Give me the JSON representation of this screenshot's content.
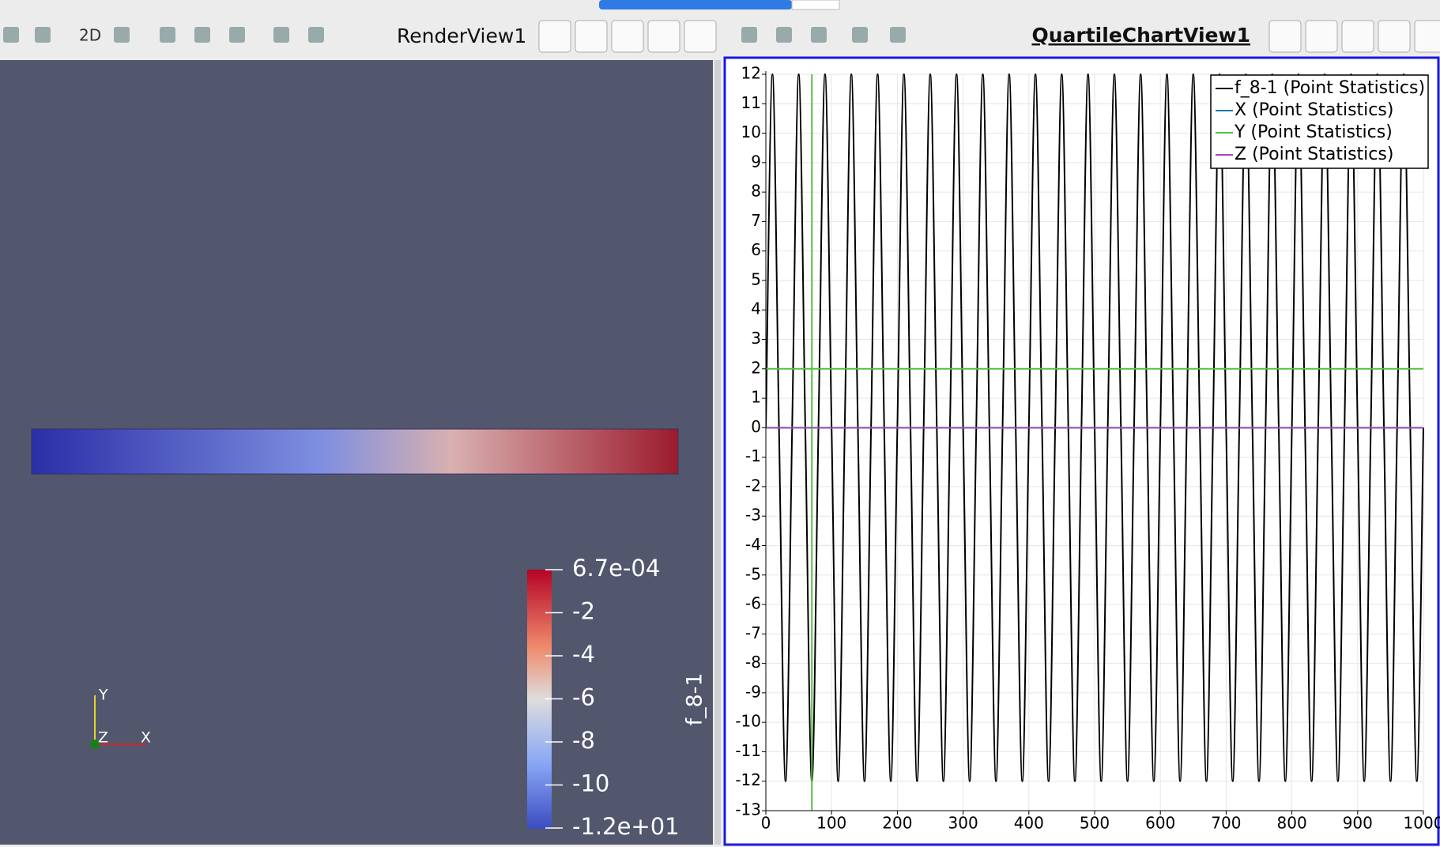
{
  "toolbar": {
    "button_2d": "2D",
    "render_view": "RenderView1",
    "chart_view": "QuartileChartView1"
  },
  "render_view": {
    "colorbar": {
      "title": "f_8-1",
      "labels": [
        "6.7e-04",
        "-2",
        "-4",
        "-6",
        "-8",
        "-10",
        "-1.2e+01"
      ]
    },
    "axes": {
      "y": "Y",
      "z": "Z",
      "x": "X"
    }
  },
  "chart_data": {
    "type": "line",
    "xlim": [
      0,
      1000
    ],
    "ylim": [
      -13,
      12
    ],
    "xticks": [
      0,
      100,
      200,
      300,
      400,
      500,
      600,
      700,
      800,
      900,
      1000
    ],
    "yticks": [
      -13,
      -12,
      -11,
      -10,
      -9,
      -8,
      -7,
      -6,
      -5,
      -4,
      -3,
      -2,
      -1,
      0,
      1,
      2,
      3,
      4,
      5,
      6,
      7,
      8,
      9,
      10,
      11,
      12
    ],
    "grid": true,
    "legend": "top-right",
    "series": [
      {
        "name": "f_8-1 (Point Statistics)",
        "color": "#000000",
        "x": [
          0,
          10,
          20,
          30,
          40,
          50,
          60,
          70,
          80,
          90,
          100,
          110,
          120,
          130,
          140,
          150,
          160,
          170,
          180,
          190,
          200,
          210,
          220,
          230,
          240,
          250,
          260,
          270,
          280,
          290,
          300,
          310,
          320,
          330,
          340,
          350,
          360,
          370,
          380,
          390,
          400,
          410,
          420,
          430,
          440,
          450,
          460,
          470,
          480,
          490,
          500,
          510,
          520,
          530,
          540,
          550,
          560,
          570,
          580,
          590,
          600,
          610,
          620,
          630,
          640,
          650,
          660,
          670,
          680,
          690,
          700,
          710,
          720,
          730,
          740,
          750,
          760,
          770,
          780,
          790,
          800,
          810,
          820,
          830,
          840,
          850,
          860,
          870,
          880,
          890,
          900,
          910,
          920,
          930,
          940,
          950,
          960,
          970,
          980,
          990,
          1000
        ],
        "values": [
          0,
          12,
          0,
          -12,
          0,
          12,
          0,
          -12,
          0,
          12,
          0,
          -12,
          0,
          12,
          0,
          -12,
          0,
          12,
          0,
          -12,
          0,
          12,
          0,
          -12,
          0,
          12,
          0,
          -12,
          0,
          12,
          0,
          -12,
          0,
          12,
          0,
          -12,
          0,
          12,
          0,
          -12,
          0,
          12,
          0,
          -12,
          0,
          12,
          0,
          -12,
          0,
          12,
          0,
          -12,
          0,
          12,
          0,
          -12,
          0,
          12,
          0,
          -12,
          0,
          12,
          0,
          -12,
          0,
          12,
          0,
          -12,
          0,
          12,
          0,
          -12,
          0,
          12,
          0,
          -12,
          0,
          12,
          0,
          -12,
          0,
          12,
          0,
          -12,
          0,
          12,
          0,
          -12,
          0,
          12,
          0,
          -12,
          0,
          12,
          0,
          -12,
          0,
          12,
          0,
          -12,
          0
        ]
      },
      {
        "name": "X (Point Statistics)",
        "color": "#1f77b4",
        "x": [
          0,
          1000
        ],
        "values": [
          0,
          0
        ]
      },
      {
        "name": "Y (Point Statistics)",
        "color": "#55c141",
        "x": [
          0,
          1000,
          70,
          70,
          70
        ],
        "values": [
          2,
          2,
          null,
          12,
          -13
        ]
      },
      {
        "name": "Z (Point Statistics)",
        "color": "#a34ab5",
        "x": [
          0,
          1000
        ],
        "values": [
          0,
          0
        ]
      }
    ]
  }
}
